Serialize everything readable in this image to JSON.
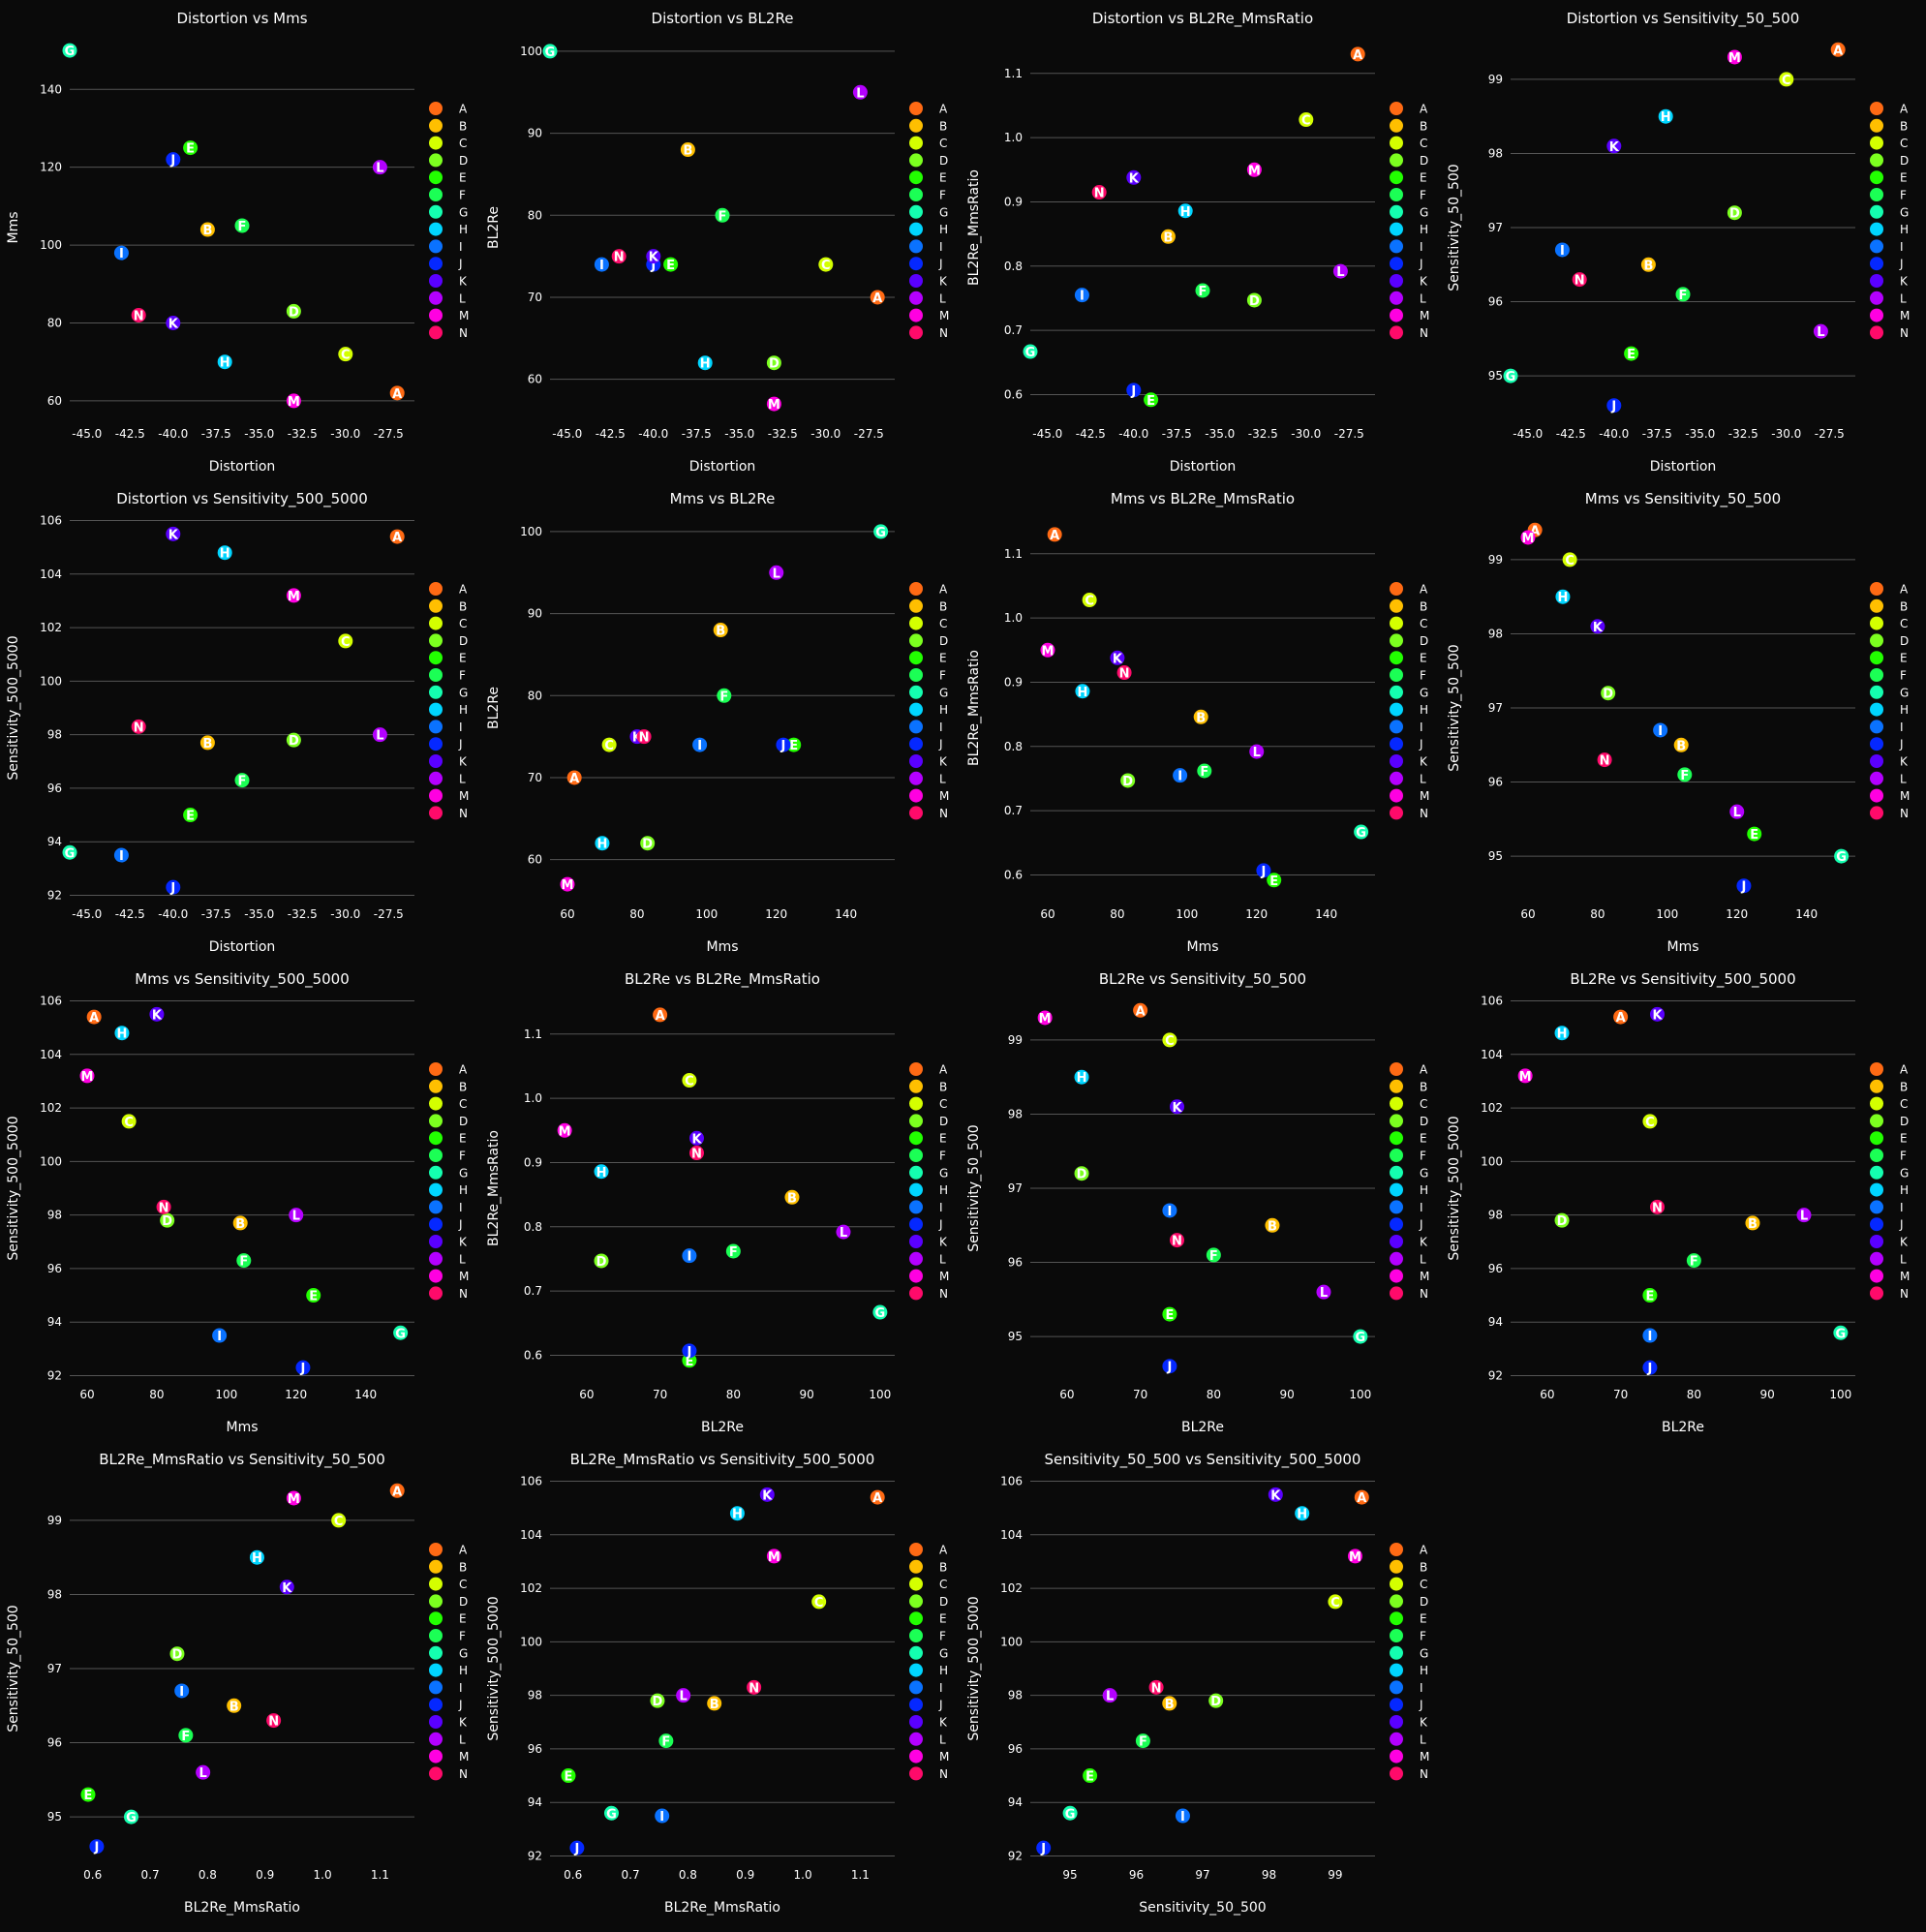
{
  "colors": {
    "background": "#0a0a0a",
    "plot_background": "#0a0a0a",
    "grid": "#555555",
    "text": "#ffffff"
  },
  "legend": {
    "placement": "right",
    "labels": [
      "A",
      "B",
      "C",
      "D",
      "E",
      "F",
      "G",
      "H",
      "I",
      "J",
      "K",
      "L",
      "M",
      "N"
    ],
    "colors": [
      "#ff6a14",
      "#ffbf00",
      "#d4ff00",
      "#7cff1f",
      "#22ff00",
      "#1bff55",
      "#14ffb0",
      "#00d5ff",
      "#0a72ff",
      "#0528ff",
      "#5a00ff",
      "#b400ff",
      "#ff00e1",
      "#ff0a6a"
    ]
  },
  "chart_data": [
    {
      "type": "scatter",
      "title": "Distortion vs Mms",
      "xlabel": "Distortion",
      "ylabel": "Mms",
      "xvar": "Distortion",
      "yvar": "Mms",
      "xlim": [
        -46,
        -26
      ],
      "ylim": [
        55,
        154
      ],
      "xticks": [
        -45.0,
        -42.5,
        -40.0,
        -37.5,
        -35.0,
        -32.5,
        -30.0,
        -27.5
      ],
      "xtick_labels": [
        "-45.0",
        "-42.5",
        "-40.0",
        "-37.5",
        "-35.0",
        "-32.5",
        "-30.0",
        "-27.5"
      ],
      "yticks": [
        60,
        80,
        100,
        120,
        140
      ],
      "ytick_labels": [
        "60",
        "80",
        "100",
        "120",
        "140"
      ],
      "grid": "y"
    },
    {
      "type": "scatter",
      "title": "Distortion vs BL2Re",
      "xlabel": "Distortion",
      "ylabel": "BL2Re",
      "xvar": "Distortion",
      "yvar": "BL2Re",
      "xlim": [
        -46,
        -26
      ],
      "ylim": [
        55,
        102
      ],
      "xticks": [
        -45.0,
        -42.5,
        -40.0,
        -37.5,
        -35.0,
        -32.5,
        -30.0,
        -27.5
      ],
      "xtick_labels": [
        "-45.0",
        "-42.5",
        "-40.0",
        "-37.5",
        "-35.0",
        "-32.5",
        "-30.0",
        "-27.5"
      ],
      "yticks": [
        60,
        70,
        80,
        90,
        100
      ],
      "ytick_labels": [
        "60",
        "70",
        "80",
        "90",
        "100"
      ],
      "grid": "y"
    },
    {
      "type": "scatter",
      "title": "Distortion vs BL2Re_MmsRatio",
      "xlabel": "Distortion",
      "ylabel": "BL2Re_MmsRatio",
      "xvar": "Distortion",
      "yvar": "BL2Re_MmsRatio",
      "xlim": [
        -46,
        -26
      ],
      "ylim": [
        0.56,
        1.16
      ],
      "xticks": [
        -45.0,
        -42.5,
        -40.0,
        -37.5,
        -35.0,
        -32.5,
        -30.0,
        -27.5
      ],
      "xtick_labels": [
        "-45.0",
        "-42.5",
        "-40.0",
        "-37.5",
        "-35.0",
        "-32.5",
        "-30.0",
        "-27.5"
      ],
      "yticks": [
        0.6,
        0.7,
        0.8,
        0.9,
        1.0,
        1.1
      ],
      "ytick_labels": [
        "0.6",
        "0.7",
        "0.8",
        "0.9",
        "1.0",
        "1.1"
      ],
      "grid": "y"
    },
    {
      "type": "scatter",
      "title": "Distortion vs Sensitivity_50_500",
      "xlabel": "Distortion",
      "ylabel": "Sensitivity_50_500",
      "xvar": "Distortion",
      "yvar": "Sensitivity_50_500",
      "xlim": [
        -46,
        -26
      ],
      "ylim": [
        94.4,
        99.6
      ],
      "xticks": [
        -45.0,
        -42.5,
        -40.0,
        -37.5,
        -35.0,
        -32.5,
        -30.0,
        -27.5
      ],
      "xtick_labels": [
        "-45.0",
        "-42.5",
        "-40.0",
        "-37.5",
        "-35.0",
        "-32.5",
        "-30.0",
        "-27.5"
      ],
      "yticks": [
        95,
        96,
        97,
        98,
        99
      ],
      "ytick_labels": [
        "95",
        "96",
        "97",
        "98",
        "99"
      ],
      "grid": "y"
    },
    {
      "type": "scatter",
      "title": "Distortion vs Sensitivity_500_5000",
      "xlabel": "Distortion",
      "ylabel": "Sensitivity_500_5000",
      "xvar": "Distortion",
      "yvar": "Sensitivity_500_5000",
      "xlim": [
        -46,
        -26
      ],
      "ylim": [
        91.8,
        106.2
      ],
      "xticks": [
        -45.0,
        -42.5,
        -40.0,
        -37.5,
        -35.0,
        -32.5,
        -30.0,
        -27.5
      ],
      "xtick_labels": [
        "-45.0",
        "-42.5",
        "-40.0",
        "-37.5",
        "-35.0",
        "-32.5",
        "-30.0",
        "-27.5"
      ],
      "yticks": [
        92,
        94,
        96,
        98,
        100,
        102,
        104,
        106
      ],
      "ytick_labels": [
        "92",
        "94",
        "96",
        "98",
        "100",
        "102",
        "104",
        "106"
      ],
      "grid": "y"
    },
    {
      "type": "scatter",
      "title": "Mms vs BL2Re",
      "xlabel": "Mms",
      "ylabel": "BL2Re",
      "xvar": "Mms",
      "yvar": "BL2Re",
      "xlim": [
        55,
        154
      ],
      "ylim": [
        55,
        102
      ],
      "xticks": [
        60,
        80,
        100,
        120,
        140
      ],
      "xtick_labels": [
        "60",
        "80",
        "100",
        "120",
        "140"
      ],
      "yticks": [
        60,
        70,
        80,
        90,
        100
      ],
      "ytick_labels": [
        "60",
        "70",
        "80",
        "90",
        "100"
      ],
      "grid": "y"
    },
    {
      "type": "scatter",
      "title": "Mms vs BL2Re_MmsRatio",
      "xlabel": "Mms",
      "ylabel": "BL2Re_MmsRatio",
      "xvar": "Mms",
      "yvar": "BL2Re_MmsRatio",
      "xlim": [
        55,
        154
      ],
      "ylim": [
        0.56,
        1.16
      ],
      "xticks": [
        60,
        80,
        100,
        120,
        140
      ],
      "xtick_labels": [
        "60",
        "80",
        "100",
        "120",
        "140"
      ],
      "yticks": [
        0.6,
        0.7,
        0.8,
        0.9,
        1.0,
        1.1
      ],
      "ytick_labels": [
        "0.6",
        "0.7",
        "0.8",
        "0.9",
        "1.0",
        "1.1"
      ],
      "grid": "y"
    },
    {
      "type": "scatter",
      "title": "Mms vs Sensitivity_50_500",
      "xlabel": "Mms",
      "ylabel": "Sensitivity_50_500",
      "xvar": "Mms",
      "yvar": "Sensitivity_50_500",
      "xlim": [
        55,
        154
      ],
      "ylim": [
        94.4,
        99.6
      ],
      "xticks": [
        60,
        80,
        100,
        120,
        140
      ],
      "xtick_labels": [
        "60",
        "80",
        "100",
        "120",
        "140"
      ],
      "yticks": [
        95,
        96,
        97,
        98,
        99
      ],
      "ytick_labels": [
        "95",
        "96",
        "97",
        "98",
        "99"
      ],
      "grid": "y"
    },
    {
      "type": "scatter",
      "title": "Mms vs Sensitivity_500_5000",
      "xlabel": "Mms",
      "ylabel": "Sensitivity_500_5000",
      "xvar": "Mms",
      "yvar": "Sensitivity_500_5000",
      "xlim": [
        55,
        154
      ],
      "ylim": [
        91.8,
        106.2
      ],
      "xticks": [
        60,
        80,
        100,
        120,
        140
      ],
      "xtick_labels": [
        "60",
        "80",
        "100",
        "120",
        "140"
      ],
      "yticks": [
        92,
        94,
        96,
        98,
        100,
        102,
        104,
        106
      ],
      "ytick_labels": [
        "92",
        "94",
        "96",
        "98",
        "100",
        "102",
        "104",
        "106"
      ],
      "grid": "y"
    },
    {
      "type": "scatter",
      "title": "BL2Re vs BL2Re_MmsRatio",
      "xlabel": "BL2Re",
      "ylabel": "BL2Re_MmsRatio",
      "xvar": "BL2Re",
      "yvar": "BL2Re_MmsRatio",
      "xlim": [
        55,
        102
      ],
      "ylim": [
        0.56,
        1.16
      ],
      "xticks": [
        60,
        70,
        80,
        90,
        100
      ],
      "xtick_labels": [
        "60",
        "70",
        "80",
        "90",
        "100"
      ],
      "yticks": [
        0.6,
        0.7,
        0.8,
        0.9,
        1.0,
        1.1
      ],
      "ytick_labels": [
        "0.6",
        "0.7",
        "0.8",
        "0.9",
        "1.0",
        "1.1"
      ],
      "grid": "y"
    },
    {
      "type": "scatter",
      "title": "BL2Re vs Sensitivity_50_500",
      "xlabel": "BL2Re",
      "ylabel": "Sensitivity_50_500",
      "xvar": "BL2Re",
      "yvar": "Sensitivity_50_500",
      "xlim": [
        55,
        102
      ],
      "ylim": [
        94.4,
        99.6
      ],
      "xticks": [
        60,
        70,
        80,
        90,
        100
      ],
      "xtick_labels": [
        "60",
        "70",
        "80",
        "90",
        "100"
      ],
      "yticks": [
        95,
        96,
        97,
        98,
        99
      ],
      "ytick_labels": [
        "95",
        "96",
        "97",
        "98",
        "99"
      ],
      "grid": "y"
    },
    {
      "type": "scatter",
      "title": "BL2Re vs Sensitivity_500_5000",
      "xlabel": "BL2Re",
      "ylabel": "Sensitivity_500_5000",
      "xvar": "BL2Re",
      "yvar": "Sensitivity_500_5000",
      "xlim": [
        55,
        102
      ],
      "ylim": [
        91.8,
        106.2
      ],
      "xticks": [
        60,
        70,
        80,
        90,
        100
      ],
      "xtick_labels": [
        "60",
        "70",
        "80",
        "90",
        "100"
      ],
      "yticks": [
        92,
        94,
        96,
        98,
        100,
        102,
        104,
        106
      ],
      "ytick_labels": [
        "92",
        "94",
        "96",
        "98",
        "100",
        "102",
        "104",
        "106"
      ],
      "grid": "y"
    },
    {
      "type": "scatter",
      "title": "BL2Re_MmsRatio vs Sensitivity_50_500",
      "xlabel": "BL2Re_MmsRatio",
      "ylabel": "Sensitivity_50_500",
      "xvar": "BL2Re_MmsRatio",
      "yvar": "Sensitivity_50_500",
      "xlim": [
        0.56,
        1.16
      ],
      "ylim": [
        94.4,
        99.6
      ],
      "xticks": [
        0.6,
        0.7,
        0.8,
        0.9,
        1.0,
        1.1
      ],
      "xtick_labels": [
        "0.6",
        "0.7",
        "0.8",
        "0.9",
        "1.0",
        "1.1"
      ],
      "yticks": [
        95,
        96,
        97,
        98,
        99
      ],
      "ytick_labels": [
        "95",
        "96",
        "97",
        "98",
        "99"
      ],
      "grid": "y"
    },
    {
      "type": "scatter",
      "title": "BL2Re_MmsRatio vs Sensitivity_500_5000",
      "xlabel": "BL2Re_MmsRatio",
      "ylabel": "Sensitivity_500_5000",
      "xvar": "BL2Re_MmsRatio",
      "yvar": "Sensitivity_500_5000",
      "xlim": [
        0.56,
        1.16
      ],
      "ylim": [
        91.8,
        106.2
      ],
      "xticks": [
        0.6,
        0.7,
        0.8,
        0.9,
        1.0,
        1.1
      ],
      "xtick_labels": [
        "0.6",
        "0.7",
        "0.8",
        "0.9",
        "1.0",
        "1.1"
      ],
      "yticks": [
        92,
        94,
        96,
        98,
        100,
        102,
        104,
        106
      ],
      "ytick_labels": [
        "92",
        "94",
        "96",
        "98",
        "100",
        "102",
        "104",
        "106"
      ],
      "grid": "y"
    },
    {
      "type": "scatter",
      "title": "Sensitivity_50_500 vs Sensitivity_500_5000",
      "xlabel": "Sensitivity_50_500",
      "ylabel": "Sensitivity_500_5000",
      "xvar": "Sensitivity_50_500",
      "yvar": "Sensitivity_500_5000",
      "xlim": [
        94.4,
        99.6
      ],
      "ylim": [
        91.8,
        106.2
      ],
      "xticks": [
        95,
        96,
        97,
        98,
        99
      ],
      "xtick_labels": [
        "95",
        "96",
        "97",
        "98",
        "99"
      ],
      "yticks": [
        92,
        94,
        96,
        98,
        100,
        102,
        104,
        106
      ],
      "ytick_labels": [
        "92",
        "94",
        "96",
        "98",
        "100",
        "102",
        "104",
        "106"
      ],
      "grid": "y"
    }
  ],
  "points": [
    {
      "label": "A",
      "Distortion": -27,
      "Mms": 62,
      "BL2Re": 70,
      "BL2Re_MmsRatio": 1.13,
      "Sensitivity_50_500": 99.4,
      "Sensitivity_500_5000": 105.4
    },
    {
      "label": "B",
      "Distortion": -38,
      "Mms": 104,
      "BL2Re": 88,
      "BL2Re_MmsRatio": 0.846,
      "Sensitivity_50_500": 96.5,
      "Sensitivity_500_5000": 97.7
    },
    {
      "label": "C",
      "Distortion": -30,
      "Mms": 72,
      "BL2Re": 74,
      "BL2Re_MmsRatio": 1.028,
      "Sensitivity_50_500": 99.0,
      "Sensitivity_500_5000": 101.5
    },
    {
      "label": "D",
      "Distortion": -33,
      "Mms": 83,
      "BL2Re": 62,
      "BL2Re_MmsRatio": 0.747,
      "Sensitivity_50_500": 97.2,
      "Sensitivity_500_5000": 97.8
    },
    {
      "label": "E",
      "Distortion": -39,
      "Mms": 125,
      "BL2Re": 74,
      "BL2Re_MmsRatio": 0.592,
      "Sensitivity_50_500": 95.3,
      "Sensitivity_500_5000": 95.0
    },
    {
      "label": "F",
      "Distortion": -36,
      "Mms": 105,
      "BL2Re": 80,
      "BL2Re_MmsRatio": 0.762,
      "Sensitivity_50_500": 96.1,
      "Sensitivity_500_5000": 96.3
    },
    {
      "label": "G",
      "Distortion": -46,
      "Mms": 150,
      "BL2Re": 100,
      "BL2Re_MmsRatio": 0.667,
      "Sensitivity_50_500": 95.0,
      "Sensitivity_500_5000": 93.6
    },
    {
      "label": "H",
      "Distortion": -37,
      "Mms": 70,
      "BL2Re": 62,
      "BL2Re_MmsRatio": 0.886,
      "Sensitivity_50_500": 98.5,
      "Sensitivity_500_5000": 104.8
    },
    {
      "label": "I",
      "Distortion": -43,
      "Mms": 98,
      "BL2Re": 74,
      "BL2Re_MmsRatio": 0.755,
      "Sensitivity_50_500": 96.7,
      "Sensitivity_500_5000": 93.5
    },
    {
      "label": "J",
      "Distortion": -40,
      "Mms": 122,
      "BL2Re": 74,
      "BL2Re_MmsRatio": 0.607,
      "Sensitivity_50_500": 94.6,
      "Sensitivity_500_5000": 92.3
    },
    {
      "label": "K",
      "Distortion": -40,
      "Mms": 80,
      "BL2Re": 75,
      "BL2Re_MmsRatio": 0.938,
      "Sensitivity_50_500": 98.1,
      "Sensitivity_500_5000": 105.5
    },
    {
      "label": "L",
      "Distortion": -28,
      "Mms": 120,
      "BL2Re": 95,
      "BL2Re_MmsRatio": 0.792,
      "Sensitivity_50_500": 95.6,
      "Sensitivity_500_5000": 98.0
    },
    {
      "label": "M",
      "Distortion": -33,
      "Mms": 60,
      "BL2Re": 57,
      "BL2Re_MmsRatio": 0.95,
      "Sensitivity_50_500": 99.3,
      "Sensitivity_500_5000": 103.2
    },
    {
      "label": "N",
      "Distortion": -42,
      "Mms": 82,
      "BL2Re": 75,
      "BL2Re_MmsRatio": 0.915,
      "Sensitivity_50_500": 96.3,
      "Sensitivity_500_5000": 98.3
    }
  ]
}
